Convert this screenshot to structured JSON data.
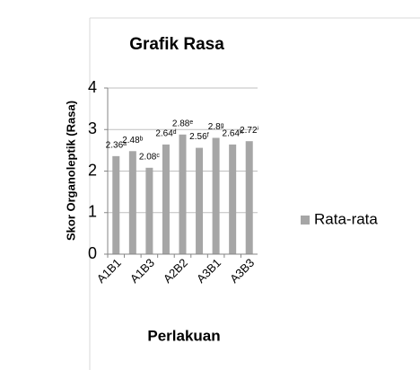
{
  "chart_data": {
    "type": "bar",
    "title": "Grafik Rasa",
    "x_label": "Perlakuan",
    "y_label": "Skor Organoleptik (Rasa)",
    "categories": [
      "A1B1",
      null,
      "A1B3",
      null,
      "A2B2",
      null,
      "A3B1",
      null,
      "A3B3"
    ],
    "series": [
      {
        "name": "Rata-rata",
        "color": "#a6a6a6",
        "values": [
          2.36,
          2.48,
          2.08,
          2.64,
          2.88,
          2.56,
          2.8,
          2.64,
          2.72
        ],
        "value_labels": [
          "2.36ᵃ",
          "2.48ᵇ",
          "2.08ᶜ",
          "2.64ᵈ",
          "2.88ᵉ",
          "2.56ᶠ",
          "2.8ᵍ",
          "2.64ʰ",
          "2.72ⁱ"
        ]
      }
    ],
    "ylim": [
      0,
      4
    ],
    "yticks": [
      0,
      1,
      2,
      3,
      4
    ],
    "grid": true,
    "legend": "right"
  }
}
